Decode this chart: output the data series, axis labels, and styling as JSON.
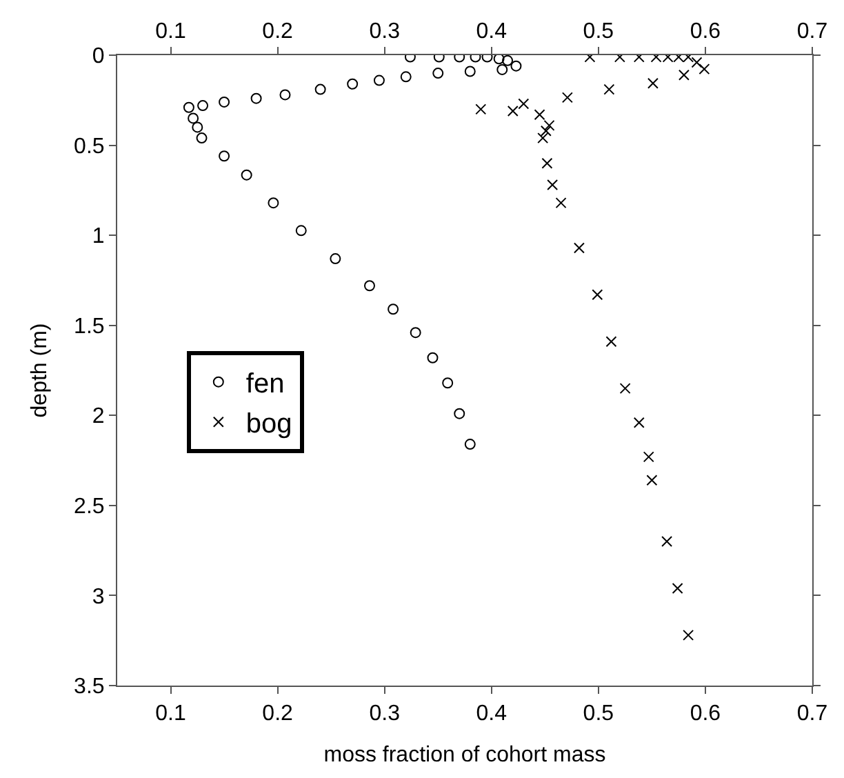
{
  "chart_data": {
    "type": "scatter",
    "xlabel": "moss fraction of cohort mass",
    "ylabel": "depth (m)",
    "xlim": [
      0.05,
      0.7
    ],
    "xticks": [
      0.1,
      0.2,
      0.3,
      0.4,
      0.5,
      0.6,
      0.7
    ],
    "x2lim": [
      0.05,
      0.7
    ],
    "x2ticks": [
      0.1,
      0.2,
      0.3,
      0.4,
      0.5,
      0.6,
      0.7
    ],
    "ylim": [
      3.5,
      0
    ],
    "yticks": [
      0,
      0.5,
      1,
      1.5,
      2,
      2.5,
      3,
      3.5
    ],
    "legend": "left",
    "series": [
      {
        "name": "fen",
        "color": "#000000",
        "marker": "circle",
        "x": [
          0.324,
          0.351,
          0.37,
          0.385,
          0.396,
          0.407,
          0.415,
          0.423,
          0.41,
          0.38,
          0.35,
          0.32,
          0.295,
          0.27,
          0.24,
          0.207,
          0.18,
          0.15,
          0.13,
          0.117,
          0.121,
          0.125,
          0.129,
          0.15,
          0.171,
          0.196,
          0.222,
          0.254,
          0.286,
          0.308,
          0.329,
          0.345,
          0.359,
          0.37,
          0.38
        ],
        "values": [
          0.01,
          0.01,
          0.01,
          0.01,
          0.01,
          0.02,
          0.03,
          0.06,
          0.08,
          0.09,
          0.1,
          0.12,
          0.14,
          0.16,
          0.19,
          0.22,
          0.24,
          0.26,
          0.28,
          0.29,
          0.35,
          0.4,
          0.46,
          0.56,
          0.665,
          0.82,
          0.974,
          1.13,
          1.28,
          1.41,
          1.54,
          1.68,
          1.82,
          1.99,
          2.16
        ]
      },
      {
        "name": "bog",
        "color": "#000000",
        "marker": "cross",
        "x": [
          0.492,
          0.52,
          0.538,
          0.554,
          0.565,
          0.575,
          0.584,
          0.592,
          0.599,
          0.58,
          0.551,
          0.51,
          0.471,
          0.43,
          0.39,
          0.42,
          0.445,
          0.454,
          0.451,
          0.448,
          0.452,
          0.457,
          0.465,
          0.482,
          0.499,
          0.512,
          0.525,
          0.538,
          0.547,
          0.55,
          0.564,
          0.574,
          0.584
        ],
        "values": [
          0.01,
          0.01,
          0.01,
          0.01,
          0.01,
          0.01,
          0.01,
          0.04,
          0.077,
          0.11,
          0.156,
          0.19,
          0.235,
          0.27,
          0.3,
          0.31,
          0.33,
          0.39,
          0.42,
          0.46,
          0.6,
          0.72,
          0.82,
          1.07,
          1.33,
          1.59,
          1.85,
          2.04,
          2.23,
          2.36,
          2.7,
          2.96,
          3.22
        ]
      }
    ]
  }
}
